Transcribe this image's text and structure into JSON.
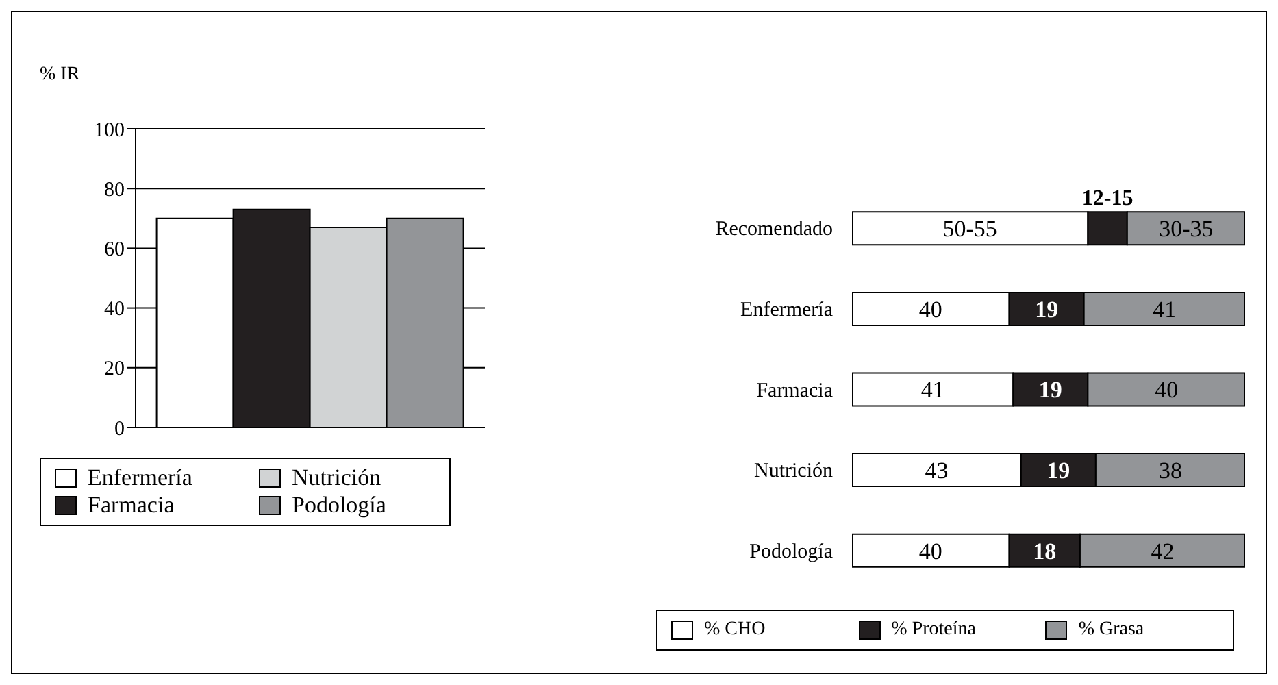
{
  "chart_data": [
    {
      "type": "bar",
      "ylabel": "% IR",
      "categories": [
        null
      ],
      "series": [
        {
          "name": "Enfermería",
          "color": "#ffffff",
          "values": [
            70
          ]
        },
        {
          "name": "Farmacia",
          "color": "#231f20",
          "values": [
            73
          ]
        },
        {
          "name": "Nutrición",
          "color": "#d1d3d4",
          "values": [
            67
          ]
        },
        {
          "name": "Podología",
          "color": "#939598",
          "values": [
            70
          ]
        }
      ],
      "ylim": [
        0,
        100
      ],
      "yticks": [
        0,
        20,
        40,
        60,
        80,
        100
      ],
      "grid": "y",
      "legend": "bottom",
      "tick_labels": "y"
    },
    {
      "type": "bar",
      "orientation": "horizontal",
      "stacked": true,
      "categories": [
        "Recomendado",
        "Enfermería",
        "Farmacia",
        "Nutrición",
        "Podología"
      ],
      "series": [
        {
          "name": "% CHO",
          "color": "#ffffff",
          "values": [
            60,
            40,
            41,
            43,
            40
          ],
          "value_labels": [
            "50-55",
            "40",
            "41",
            "43",
            "40"
          ]
        },
        {
          "name": "% Proteína",
          "color": "#231f20",
          "values": [
            10,
            19,
            19,
            19,
            18
          ],
          "value_labels": [
            "12-15",
            "19",
            "19",
            "19",
            "18"
          ]
        },
        {
          "name": "% Grasa",
          "color": "#939598",
          "values": [
            30,
            41,
            40,
            38,
            42
          ],
          "value_labels": [
            "30-35",
            "41",
            "40",
            "38",
            "42"
          ]
        }
      ],
      "xlim": [
        0,
        100
      ],
      "legend": "bottom",
      "tick_labels": "y"
    }
  ]
}
